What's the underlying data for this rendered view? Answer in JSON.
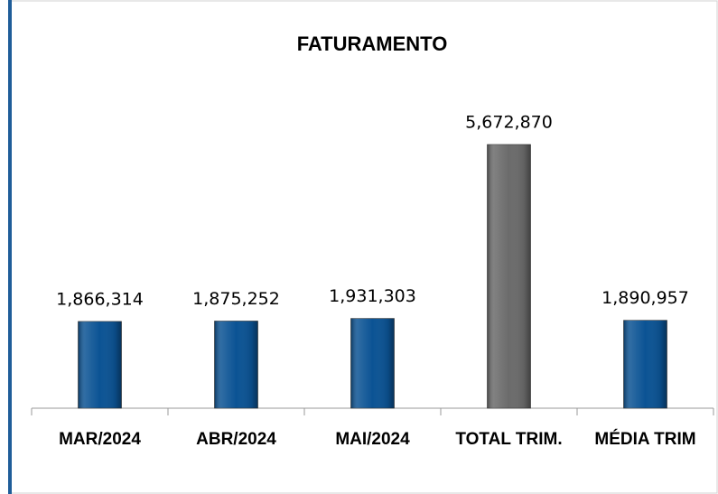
{
  "chart_data": {
    "type": "bar",
    "title": "FATURAMENTO",
    "categories": [
      "MAR/2024",
      "ABR/2024",
      "MAI/2024",
      "TOTAL TRIM.",
      "MÉDIA TRIM"
    ],
    "values": [
      1866314,
      1875252,
      1931303,
      5672870,
      1890957
    ],
    "value_labels": [
      "1,866,314",
      "1,875,252",
      "1,931,303",
      "5,672,870",
      "1,890,957"
    ],
    "colors": [
      "#0b5394",
      "#0b5394",
      "#0b5394",
      "#6b6b6b",
      "#0b5394"
    ]
  }
}
